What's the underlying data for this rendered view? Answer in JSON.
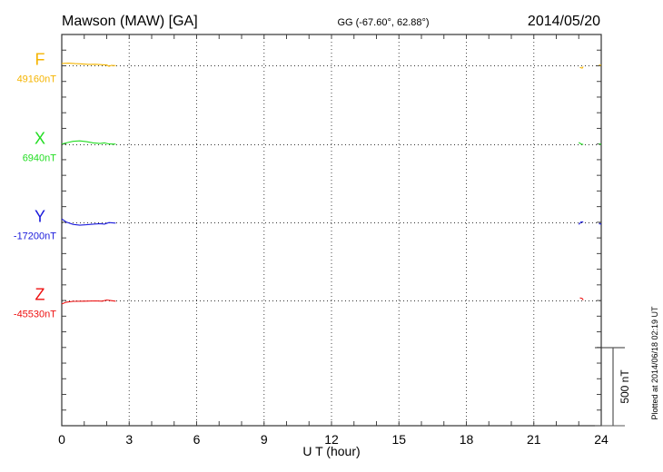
{
  "chart_data": {
    "type": "line",
    "title": "Mawson (MAW)  [GA]",
    "subtitle": "GG (-67.60°,  62.88°)",
    "date": "2014/05/20",
    "xlabel": "U T (hour)",
    "xlim": [
      0,
      24
    ],
    "x_ticks": [
      "0",
      "3",
      "6",
      "9",
      "12",
      "15",
      "18",
      "21",
      "24"
    ],
    "x_tick_values": [
      0,
      3,
      6,
      9,
      12,
      15,
      18,
      21,
      24
    ],
    "scale_bar_label": "500 nT",
    "scale_bar_nT": 500,
    "minor_tick_nT": 100,
    "y_span_nT": 2500,
    "grid": "dotted",
    "footer": "Plotted at 2014/06/18 02:19 UT",
    "series": [
      {
        "name": "F",
        "baseline_label": "49160nT",
        "baseline_nT": 49160,
        "color": "#f5b400",
        "panel_offset_nT": 1300,
        "segments": [
          [
            [
              0,
              15
            ],
            [
              0.3,
              17
            ],
            [
              0.6,
              14
            ],
            [
              0.9,
              12
            ],
            [
              1.2,
              9
            ],
            [
              1.5,
              10
            ],
            [
              1.8,
              7
            ],
            [
              2.0,
              5
            ],
            [
              2.1,
              -3
            ],
            [
              2.2,
              3
            ],
            [
              2.4,
              1
            ]
          ],
          [
            [
              23.05,
              -10
            ],
            [
              23.15,
              -15
            ],
            [
              23.2,
              -5
            ]
          ],
          [
            [
              23.9,
              6
            ],
            [
              24,
              3
            ]
          ]
        ]
      },
      {
        "name": "X",
        "baseline_label": "6940nT",
        "baseline_nT": 6940,
        "color": "#22dd22",
        "panel_offset_nT": 800,
        "segments": [
          [
            [
              0,
              5
            ],
            [
              0.2,
              12
            ],
            [
              0.5,
              22
            ],
            [
              0.8,
              25
            ],
            [
              1.1,
              20
            ],
            [
              1.4,
              12
            ],
            [
              1.7,
              8
            ],
            [
              1.9,
              12
            ],
            [
              2.1,
              5
            ],
            [
              2.4,
              4
            ]
          ],
          [
            [
              23.0,
              15
            ],
            [
              23.1,
              5
            ],
            [
              23.2,
              2
            ]
          ],
          [
            [
              23.9,
              6
            ],
            [
              24,
              3
            ]
          ]
        ]
      },
      {
        "name": "Y",
        "baseline_label": "-17200nT",
        "baseline_nT": -17200,
        "color": "#1a1adc",
        "panel_offset_nT": 300,
        "segments": [
          [
            [
              0,
              25
            ],
            [
              0.2,
              5
            ],
            [
              0.5,
              -10
            ],
            [
              0.8,
              -15
            ],
            [
              1.1,
              -12
            ],
            [
              1.4,
              -8
            ],
            [
              1.7,
              -5
            ],
            [
              1.9,
              -8
            ],
            [
              2.1,
              2
            ],
            [
              2.4,
              -2
            ]
          ],
          [
            [
              23.0,
              -10
            ],
            [
              23.1,
              5
            ],
            [
              23.2,
              5
            ]
          ],
          [
            [
              23.9,
              -5
            ],
            [
              24,
              -8
            ]
          ]
        ]
      },
      {
        "name": "Z",
        "baseline_label": "-45530nT",
        "baseline_nT": -45530,
        "color": "#ee1111",
        "panel_offset_nT": -200,
        "segments": [
          [
            [
              0,
              -20
            ],
            [
              0.2,
              -8
            ],
            [
              0.5,
              -3
            ],
            [
              1.0,
              -2
            ],
            [
              1.5,
              0
            ],
            [
              1.8,
              -2
            ],
            [
              2.0,
              6
            ],
            [
              2.2,
              2
            ],
            [
              2.4,
              -2
            ]
          ],
          [
            [
              23.05,
              20
            ],
            [
              23.15,
              15
            ],
            [
              23.2,
              5
            ]
          ]
        ]
      }
    ]
  }
}
